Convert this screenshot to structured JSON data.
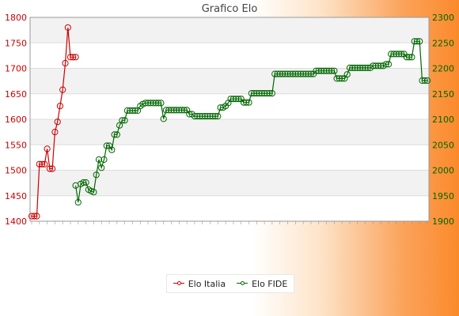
{
  "chart_data": {
    "type": "line",
    "title": "Grafico Elo",
    "xlabel": "",
    "ylabel": "",
    "grid": true,
    "legend_position": "bottom-center",
    "y_left": {
      "min": 1400,
      "max": 1800,
      "ticks": [
        "1400",
        "1450",
        "1500",
        "1550",
        "1600",
        "1650",
        "1700",
        "1750",
        "1800"
      ],
      "color": "#cc0000"
    },
    "y_right": {
      "min": 1900,
      "max": 2300,
      "ticks": [
        "1900",
        "1950",
        "2000",
        "2050",
        "2100",
        "2150",
        "2200",
        "2250",
        "2300"
      ],
      "color": "#006600"
    },
    "series": [
      {
        "name": "Elo Italia",
        "color": "#cc0000",
        "axis": "left",
        "values": [
          1410,
          1410,
          1410,
          1512,
          1512,
          1512,
          1542,
          1503,
          1503,
          1575,
          1595,
          1626,
          1658,
          1710,
          1780,
          1722,
          1722,
          1722
        ]
      },
      {
        "name": "Elo FIDE",
        "color": "#006600",
        "axis": "right",
        "values": [
          1970,
          1937,
          1973,
          1976,
          1976,
          1962,
          1959,
          1957,
          1991,
          2021,
          2005,
          2021,
          2048,
          2048,
          2040,
          2070,
          2070,
          2088,
          2098,
          2098,
          2117,
          2117,
          2117,
          2117,
          2117,
          2126,
          2130,
          2132,
          2132,
          2132,
          2132,
          2132,
          2132,
          2132,
          2101,
          2118,
          2118,
          2118,
          2118,
          2118,
          2118,
          2118,
          2118,
          2118,
          2110,
          2110,
          2106,
          2106,
          2106,
          2106,
          2106,
          2106,
          2106,
          2106,
          2106,
          2106,
          2123,
          2123,
          2126,
          2132,
          2140,
          2140,
          2140,
          2140,
          2140,
          2133,
          2133,
          2133,
          2151,
          2151,
          2151,
          2151,
          2151,
          2151,
          2151,
          2151,
          2151,
          2189,
          2189,
          2189,
          2189,
          2189,
          2189,
          2189,
          2189,
          2189,
          2189,
          2189,
          2189,
          2189,
          2189,
          2189,
          2189,
          2195,
          2195,
          2195,
          2195,
          2195,
          2195,
          2195,
          2195,
          2180,
          2180,
          2180,
          2180,
          2188,
          2201,
          2201,
          2201,
          2201,
          2201,
          2201,
          2201,
          2201,
          2201,
          2205,
          2205,
          2205,
          2205,
          2205,
          2208,
          2208,
          2228,
          2228,
          2228,
          2228,
          2228,
          2228,
          2222,
          2222,
          2222,
          2253,
          2253,
          2253,
          2176,
          2176,
          2176
        ]
      }
    ]
  }
}
